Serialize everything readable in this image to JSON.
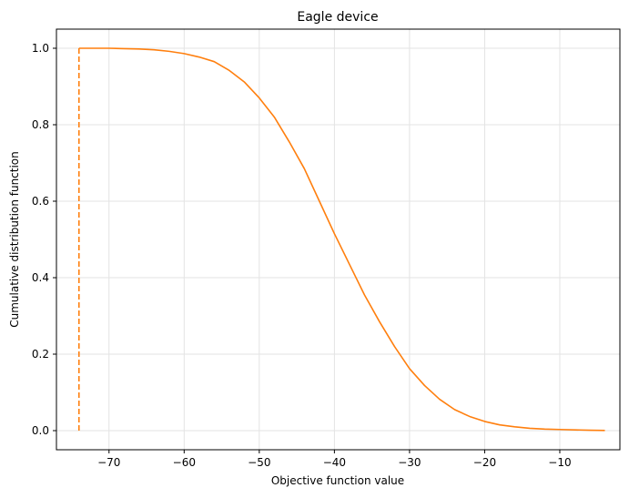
{
  "chart_data": {
    "type": "line",
    "title": "Eagle device",
    "xlabel": "Objective function value",
    "ylabel": "Cumulative distribution function",
    "xlim": [
      -77.0,
      -2.0
    ],
    "ylim": [
      -0.05,
      1.05
    ],
    "xticks": [
      -70,
      -60,
      -50,
      -40,
      -30,
      -20,
      -10
    ],
    "xtick_labels": [
      "−70",
      "−60",
      "−50",
      "−40",
      "−30",
      "−20",
      "−10"
    ],
    "yticks": [
      0.0,
      0.2,
      0.4,
      0.6,
      0.8,
      1.0
    ],
    "ytick_labels": [
      "0.0",
      "0.2",
      "0.4",
      "0.6",
      "0.8",
      "1.0"
    ],
    "grid": true,
    "color": "#ff7f0e",
    "series": [
      {
        "style": "solid",
        "x": [
          -74,
          -72,
          -70,
          -68,
          -66,
          -64,
          -62,
          -60,
          -58,
          -56,
          -54,
          -52,
          -50,
          -48,
          -46,
          -44,
          -42,
          -40,
          -38,
          -36,
          -34,
          -32,
          -30,
          -28,
          -26,
          -24,
          -22,
          -20,
          -18,
          -16,
          -14,
          -12,
          -10,
          -8,
          -6,
          -4
        ],
        "y": [
          1.0,
          1.0,
          1.0,
          0.999,
          0.998,
          0.996,
          0.992,
          0.986,
          0.977,
          0.965,
          0.942,
          0.912,
          0.87,
          0.82,
          0.755,
          0.685,
          0.6,
          0.515,
          0.435,
          0.355,
          0.285,
          0.22,
          0.162,
          0.118,
          0.082,
          0.055,
          0.037,
          0.024,
          0.015,
          0.01,
          0.006,
          0.004,
          0.003,
          0.002,
          0.001,
          0.0005
        ]
      },
      {
        "style": "dashed",
        "x": [
          -74,
          -74
        ],
        "y": [
          0.0,
          1.0
        ]
      }
    ]
  }
}
